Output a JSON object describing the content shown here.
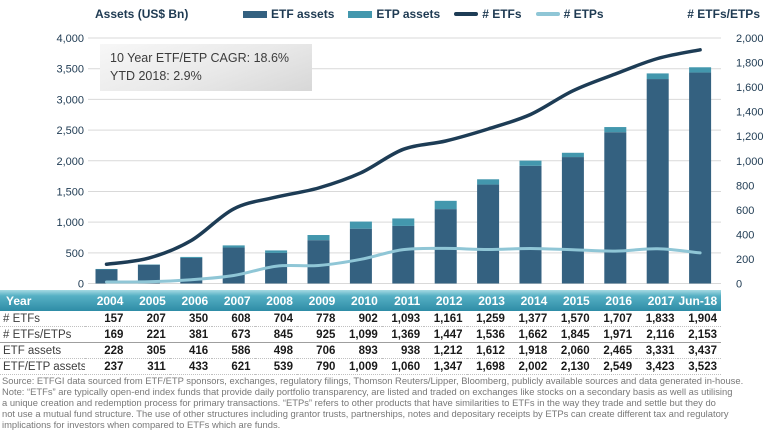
{
  "header": {
    "left_axis_title": "Assets (US$ Bn)",
    "right_axis_title": "# ETFs/ETPs",
    "legend": [
      {
        "label": "ETF assets",
        "swatch": "bar",
        "color": "#346180"
      },
      {
        "label": "ETP assets",
        "swatch": "bar",
        "color": "#4397ad"
      },
      {
        "label": "# ETFs",
        "swatch": "line",
        "color": "#1d3c55"
      },
      {
        "label": "# ETPs",
        "swatch": "line",
        "color": "#8fc6d6"
      }
    ]
  },
  "annotation": {
    "line1": "10 Year ETF/ETP CAGR: 18.6%",
    "line2": "YTD 2018: 2.9%"
  },
  "chart_data": {
    "type": "bar",
    "subtype": "stacked-bars-with-lines-combo",
    "categories": [
      "2004",
      "2005",
      "2006",
      "2007",
      "2008",
      "2009",
      "2010",
      "2011",
      "2012",
      "2013",
      "2014",
      "2015",
      "2016",
      "2017",
      "Jun-18"
    ],
    "bar_series": [
      {
        "name": "ETF assets",
        "axis": "left",
        "color": "#346180",
        "values": [
          228,
          305,
          416,
          586,
          498,
          706,
          893,
          938,
          1212,
          1612,
          1918,
          2060,
          2465,
          3331,
          3437
        ]
      },
      {
        "name": "ETP assets",
        "axis": "left",
        "color": "#4397ad",
        "stacked_on": "ETF assets",
        "values": [
          9,
          6,
          17,
          35,
          41,
          84,
          116,
          122,
          135,
          86,
          84,
          70,
          84,
          92,
          86
        ]
      }
    ],
    "bar_totals_etf_etp_assets": [
      237,
      311,
      433,
      621,
      539,
      790,
      1009,
      1060,
      1347,
      1698,
      2002,
      2130,
      2549,
      3423,
      3523
    ],
    "line_series": [
      {
        "name": "# ETFs",
        "axis": "right",
        "color": "#1d3c55",
        "width": 3.5,
        "values": [
          157,
          207,
          350,
          608,
          704,
          778,
          902,
          1093,
          1161,
          1259,
          1377,
          1570,
          1707,
          1833,
          1904
        ]
      },
      {
        "name": "# ETPs",
        "axis": "right",
        "color": "#8fc6d6",
        "width": 3,
        "values": [
          12,
          14,
          31,
          65,
          141,
          147,
          197,
          276,
          286,
          277,
          285,
          275,
          264,
          283,
          249
        ]
      }
    ],
    "left_axis": {
      "title": "Assets (US$ Bn)",
      "min": 0,
      "max": 4000,
      "step": 500
    },
    "right_axis": {
      "title": "# ETFs/ETPs",
      "min": 0,
      "max": 2000,
      "step": 200
    },
    "grid": "horizontal",
    "legend_position": "top"
  },
  "table": {
    "header_row": [
      "Year",
      "2004",
      "2005",
      "2006",
      "2007",
      "2008",
      "2009",
      "2010",
      "2011",
      "2012",
      "2013",
      "2014",
      "2015",
      "2016",
      "2017",
      "Jun-18"
    ],
    "rows": [
      {
        "label": "# ETFs",
        "values": [
          157,
          207,
          350,
          608,
          704,
          778,
          902,
          1093,
          1161,
          1259,
          1377,
          1570,
          1707,
          1833,
          1904
        ]
      },
      {
        "label": "# ETFs/ETPs",
        "values": [
          169,
          221,
          381,
          673,
          845,
          925,
          1099,
          1369,
          1447,
          1536,
          1662,
          1845,
          1971,
          2116,
          2153
        ]
      },
      {
        "label": "ETF assets",
        "values": [
          228,
          305,
          416,
          586,
          498,
          706,
          893,
          938,
          1212,
          1612,
          1918,
          2060,
          2465,
          3331,
          3437
        ]
      },
      {
        "label": "ETF/ETP assets",
        "values": [
          237,
          311,
          433,
          621,
          539,
          790,
          1009,
          1060,
          1347,
          1698,
          2002,
          2130,
          2549,
          3423,
          3523
        ]
      }
    ]
  },
  "notes": {
    "lines": [
      "Source: ETFGI data sourced from ETF/ETP sponsors, exchanges, regulatory filings, Thomson Reuters/Lipper, Bloomberg, publicly available  sources and data generated in-house.",
      "Note: “ETFs” are typically open-end index funds that provide daily portfolio transparency, are listed and traded on exchanges like stocks on a secondary basis as well as utilising",
      "a unique creation and redemption process for primary transactions. “ETPs” refers to other products that have similarities to ETFs in the way they trade and settle but they do",
      "not use a mutual fund structure. The use of other structures including grantor trusts, partnerships, notes and depositary receipts by ETPs can create different tax and regulatory",
      "implications for investors when compared to ETFs which are funds."
    ]
  },
  "colors": {
    "etf_bar": "#346180",
    "etp_bar": "#4397ad",
    "etfs_line": "#1d3c55",
    "etps_line": "#8fc6d6",
    "axis_text": "#1e3a52",
    "gridline": "#d9d9d9",
    "table_header_top": "#a6dae3",
    "table_header_bottom": "#2e8ca6"
  }
}
